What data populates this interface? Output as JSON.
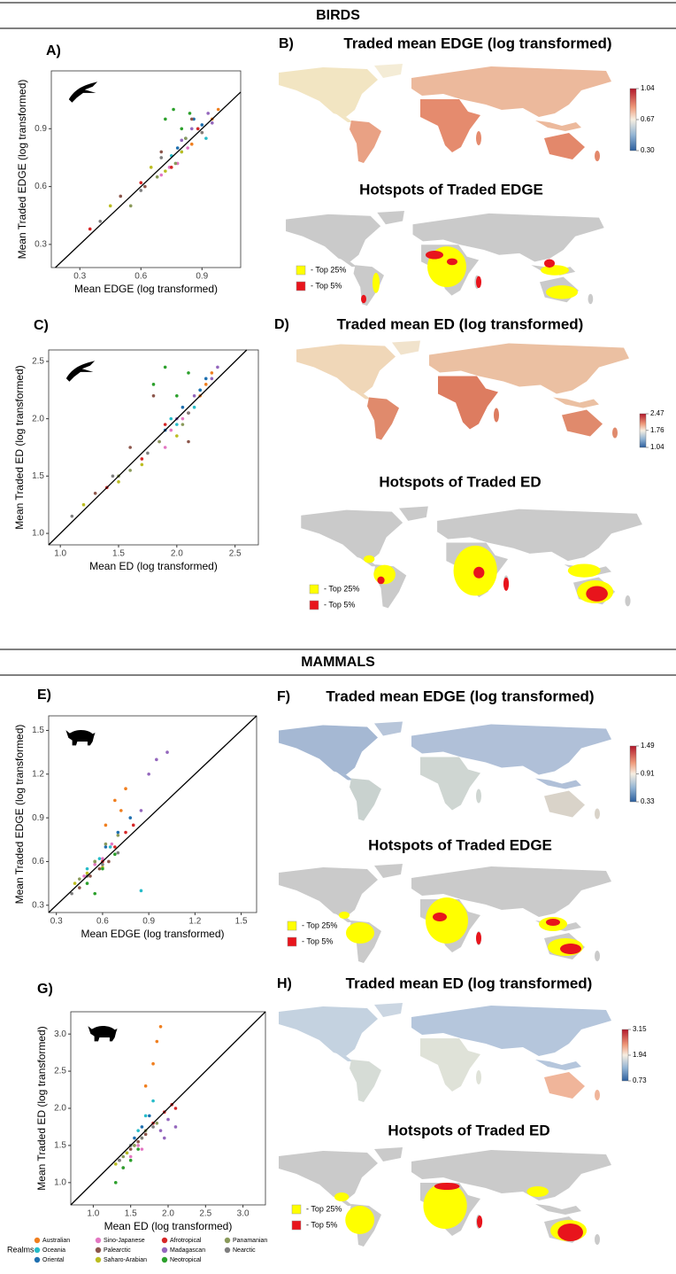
{
  "sections": [
    {
      "title": "BIRDS"
    },
    {
      "title": "MAMMALS"
    }
  ],
  "legend": {
    "title": "Realms",
    "items": [
      {
        "name": "Australian",
        "color": "#f07f1f"
      },
      {
        "name": "Oceania",
        "color": "#27bcc9"
      },
      {
        "name": "Oriental",
        "color": "#1f70b0"
      },
      {
        "name": "Sino-Japanese",
        "color": "#e377c2"
      },
      {
        "name": "Palearctic",
        "color": "#8c564b"
      },
      {
        "name": "Saharo-Arabian",
        "color": "#bcbd22"
      },
      {
        "name": "Afrotropical",
        "color": "#d62728"
      },
      {
        "name": "Madagascan",
        "color": "#9467bd"
      },
      {
        "name": "Neotropical",
        "color": "#2ca02c"
      },
      {
        "name": "Panamanian",
        "color": "#8a9a5b"
      },
      {
        "name": "Nearctic",
        "color": "#7f7f7f"
      }
    ]
  },
  "chart_data": [
    {
      "type": "scatter",
      "panel": "A)",
      "xlabel": "Mean EDGE (log transformed)",
      "ylabel": "Mean Traded EDGE (log transformed)",
      "icon": "bird",
      "xlim": [
        0.16,
        1.09
      ],
      "ylim": [
        0.18,
        1.2
      ],
      "xticks": [
        0.3,
        0.6,
        0.9
      ],
      "yticks": [
        0.3,
        0.6,
        0.9
      ],
      "series": [
        {
          "x": [
            0.85,
            0.95,
            0.9,
            0.98
          ],
          "y": [
            0.82,
            0.95,
            0.88,
            1.0
          ]
        },
        {
          "x": [
            0.8,
            0.88,
            0.92,
            0.75
          ],
          "y": [
            0.78,
            0.9,
            0.85,
            0.76
          ]
        },
        {
          "x": [
            0.82,
            0.9,
            0.78,
            0.86
          ],
          "y": [
            0.85,
            0.92,
            0.8,
            0.95
          ]
        },
        {
          "x": [
            0.7,
            0.78,
            0.83,
            0.74
          ],
          "y": [
            0.66,
            0.72,
            0.8,
            0.7
          ]
        },
        {
          "x": [
            0.5,
            0.62,
            0.7,
            0.85
          ],
          "y": [
            0.55,
            0.6,
            0.78,
            0.95
          ]
        },
        {
          "x": [
            0.45,
            0.65,
            0.72,
            0.8
          ],
          "y": [
            0.5,
            0.7,
            0.68,
            0.78
          ]
        },
        {
          "x": [
            0.6,
            0.75,
            0.88,
            0.35
          ],
          "y": [
            0.62,
            0.7,
            0.9,
            0.38
          ]
        },
        {
          "x": [
            0.85,
            0.93,
            0.8,
            0.95
          ],
          "y": [
            0.9,
            0.98,
            0.84,
            0.93
          ]
        },
        {
          "x": [
            0.72,
            0.76,
            0.8,
            0.84
          ],
          "y": [
            0.95,
            1.0,
            0.9,
            0.98
          ]
        },
        {
          "x": [
            0.55,
            0.68,
            0.77,
            0.82
          ],
          "y": [
            0.5,
            0.65,
            0.72,
            0.85
          ]
        },
        {
          "x": [
            0.4,
            0.6,
            0.7,
            0.9
          ],
          "y": [
            0.42,
            0.58,
            0.75,
            0.88
          ]
        }
      ]
    },
    {
      "type": "map",
      "panel": "B)",
      "title": "Traded mean EDGE (log transformed)",
      "clim": [
        0.3,
        1.04
      ],
      "cticks": [
        {
          "value": 0.3,
          "label": "0.30"
        },
        0.67,
        1.04
      ]
    },
    {
      "type": "hotspot",
      "title": "Hotspots of Traded EDGE",
      "keys": [
        {
          "label": "- Top 25%",
          "color": "#ffff00"
        },
        {
          "label": "- Top 5%",
          "color": "#e8141c"
        }
      ]
    },
    {
      "type": "scatter",
      "panel": "C)",
      "xlabel": "Mean ED (log transformed)",
      "ylabel": "Mean Traded ED (log transformed)",
      "icon": "bird",
      "xlim": [
        0.9,
        2.7
      ],
      "ylim": [
        0.9,
        2.6
      ],
      "xticks": [
        {
          "value": 1,
          "label": "1.0"
        },
        1.5,
        {
          "value": 2,
          "label": "2.0"
        },
        2.5
      ],
      "yticks": [
        {
          "value": 1,
          "label": "1.0"
        },
        1.5,
        {
          "value": 2,
          "label": "2.0"
        },
        2.5
      ],
      "series": [
        {
          "x": [
            2.1,
            2.25,
            2.3,
            2.2
          ],
          "y": [
            2.05,
            2.3,
            2.4,
            2.2
          ]
        },
        {
          "x": [
            2.0,
            2.15,
            2.2,
            1.95
          ],
          "y": [
            1.95,
            2.1,
            2.25,
            2.0
          ]
        },
        {
          "x": [
            2.05,
            2.2,
            2.25,
            1.9
          ],
          "y": [
            2.1,
            2.25,
            2.35,
            1.9
          ]
        },
        {
          "x": [
            1.85,
            1.95,
            2.05,
            1.9
          ],
          "y": [
            1.8,
            1.9,
            2.0,
            1.75
          ]
        },
        {
          "x": [
            1.3,
            1.6,
            1.8,
            2.1
          ],
          "y": [
            1.35,
            1.75,
            2.2,
            1.8
          ]
        },
        {
          "x": [
            1.2,
            1.5,
            1.7,
            2.0
          ],
          "y": [
            1.25,
            1.45,
            1.6,
            1.85
          ]
        },
        {
          "x": [
            1.7,
            1.9,
            2.1,
            1.4
          ],
          "y": [
            1.65,
            1.95,
            2.05,
            1.4
          ]
        },
        {
          "x": [
            2.15,
            2.3,
            2.35,
            2.0
          ],
          "y": [
            2.2,
            2.35,
            2.45,
            2.0
          ]
        },
        {
          "x": [
            1.8,
            1.9,
            2.0,
            2.1
          ],
          "y": [
            2.3,
            2.45,
            2.2,
            2.4
          ]
        },
        {
          "x": [
            1.6,
            1.85,
            2.05,
            1.5
          ],
          "y": [
            1.55,
            1.8,
            1.95,
            1.5
          ]
        },
        {
          "x": [
            1.1,
            1.45,
            1.75,
            2.1
          ],
          "y": [
            1.15,
            1.5,
            1.7,
            2.05
          ]
        }
      ]
    },
    {
      "type": "map",
      "panel": "D)",
      "title": "Traded mean ED (log transformed)",
      "clim": [
        1.04,
        2.47
      ],
      "cticks": [
        1.04,
        1.76,
        2.47
      ]
    },
    {
      "type": "hotspot",
      "title": "Hotspots of Traded ED",
      "keys": [
        {
          "label": "- Top 25%",
          "color": "#ffff00"
        },
        {
          "label": "- Top 5%",
          "color": "#e8141c"
        }
      ]
    },
    {
      "type": "scatter",
      "panel": "E)",
      "xlabel": "Mean EDGE (log transformed)",
      "ylabel": "Mean Traded EDGE (log transformed)",
      "icon": "rhino",
      "xlim": [
        0.25,
        1.6
      ],
      "ylim": [
        0.25,
        1.6
      ],
      "xticks": [
        0.3,
        0.6,
        0.9,
        1.2,
        1.5
      ],
      "yticks": [
        0.3,
        0.6,
        0.9,
        1.2,
        1.5
      ],
      "series": [
        {
          "x": [
            0.62,
            0.68,
            0.72,
            0.75
          ],
          "y": [
            0.85,
            1.02,
            0.95,
            1.1
          ]
        },
        {
          "x": [
            0.5,
            0.58,
            0.65,
            0.85
          ],
          "y": [
            0.55,
            0.62,
            0.7,
            0.4
          ]
        },
        {
          "x": [
            0.55,
            0.62,
            0.7,
            0.78
          ],
          "y": [
            0.6,
            0.7,
            0.8,
            0.9
          ]
        },
        {
          "x": [
            0.48,
            0.55,
            0.6,
            0.66
          ],
          "y": [
            0.5,
            0.58,
            0.62,
            0.72
          ]
        },
        {
          "x": [
            0.45,
            0.52,
            0.58,
            0.64
          ],
          "y": [
            0.42,
            0.5,
            0.55,
            0.6
          ]
        },
        {
          "x": [
            0.42,
            0.5,
            0.55,
            0.6
          ],
          "y": [
            0.45,
            0.52,
            0.6,
            0.56
          ]
        },
        {
          "x": [
            0.6,
            0.68,
            0.75,
            0.8
          ],
          "y": [
            0.6,
            0.7,
            0.8,
            0.85
          ]
        },
        {
          "x": [
            0.85,
            0.9,
            0.95,
            1.02
          ],
          "y": [
            0.95,
            1.2,
            1.3,
            1.35
          ]
        },
        {
          "x": [
            0.5,
            0.6,
            0.68,
            0.55
          ],
          "y": [
            0.45,
            0.55,
            0.65,
            0.38
          ]
        },
        {
          "x": [
            0.45,
            0.55,
            0.62,
            0.7
          ],
          "y": [
            0.48,
            0.6,
            0.72,
            0.78
          ]
        },
        {
          "x": [
            0.4,
            0.5,
            0.6,
            0.7
          ],
          "y": [
            0.38,
            0.5,
            0.58,
            0.66
          ]
        }
      ]
    },
    {
      "type": "map",
      "panel": "F)",
      "title": "Traded mean EDGE (log transformed)",
      "clim": [
        0.33,
        1.49
      ],
      "cticks": [
        0.33,
        0.91,
        1.49
      ]
    },
    {
      "type": "hotspot",
      "title": "Hotspots of Traded EDGE",
      "keys": [
        {
          "label": "- Top 25%",
          "color": "#ffff00"
        },
        {
          "label": "- Top 5%",
          "color": "#e8141c"
        }
      ]
    },
    {
      "type": "scatter",
      "panel": "G)",
      "xlabel": "Mean ED (log transformed)",
      "ylabel": "Mean Traded ED (log transformed)",
      "icon": "rhino",
      "xlim": [
        0.7,
        3.3
      ],
      "ylim": [
        0.7,
        3.3
      ],
      "xticks": [
        {
          "value": 1,
          "label": "1.0"
        },
        1.5,
        {
          "value": 2,
          "label": "2.0"
        },
        2.5,
        {
          "value": 3,
          "label": "3.0"
        }
      ],
      "yticks": [
        {
          "value": 1,
          "label": "1.0"
        },
        1.5,
        {
          "value": 2,
          "label": "2.0"
        },
        2.5,
        {
          "value": 3,
          "label": "3.0"
        }
      ],
      "series": [
        {
          "x": [
            1.7,
            1.8,
            1.85,
            1.9
          ],
          "y": [
            2.3,
            2.6,
            2.9,
            3.1
          ]
        },
        {
          "x": [
            1.5,
            1.6,
            1.7,
            1.8
          ],
          "y": [
            1.5,
            1.7,
            1.9,
            2.1
          ]
        },
        {
          "x": [
            1.45,
            1.55,
            1.65,
            1.75
          ],
          "y": [
            1.4,
            1.6,
            1.75,
            1.9
          ]
        },
        {
          "x": [
            1.4,
            1.5,
            1.6,
            1.65
          ],
          "y": [
            1.2,
            1.35,
            1.5,
            1.45
          ]
        },
        {
          "x": [
            1.35,
            1.5,
            1.6,
            1.7
          ],
          "y": [
            1.3,
            1.45,
            1.55,
            1.65
          ]
        },
        {
          "x": [
            1.3,
            1.45,
            1.55,
            1.65
          ],
          "y": [
            1.25,
            1.4,
            1.5,
            1.6
          ]
        },
        {
          "x": [
            1.8,
            1.95,
            2.05,
            2.1
          ],
          "y": [
            1.8,
            1.95,
            2.05,
            2.0
          ]
        },
        {
          "x": [
            1.9,
            2.0,
            2.1,
            1.95
          ],
          "y": [
            1.7,
            1.85,
            1.75,
            1.6
          ]
        },
        {
          "x": [
            1.3,
            1.4,
            1.5,
            1.6
          ],
          "y": [
            1.0,
            1.2,
            1.3,
            1.45
          ]
        },
        {
          "x": [
            1.4,
            1.55,
            1.7,
            1.85
          ],
          "y": [
            1.35,
            1.5,
            1.7,
            1.8
          ]
        },
        {
          "x": [
            1.35,
            1.5,
            1.65,
            1.8
          ],
          "y": [
            1.3,
            1.5,
            1.6,
            1.75
          ]
        }
      ]
    },
    {
      "type": "map",
      "panel": "H)",
      "title": "Traded mean ED (log transformed)",
      "clim": [
        0.73,
        3.15
      ],
      "cticks": [
        0.73,
        1.94,
        3.15
      ]
    },
    {
      "type": "hotspot",
      "title": "Hotspots of Traded ED",
      "keys": [
        {
          "label": "- Top 25%",
          "color": "#ffff00"
        },
        {
          "label": "- Top 5%",
          "color": "#e8141c"
        }
      ]
    }
  ]
}
